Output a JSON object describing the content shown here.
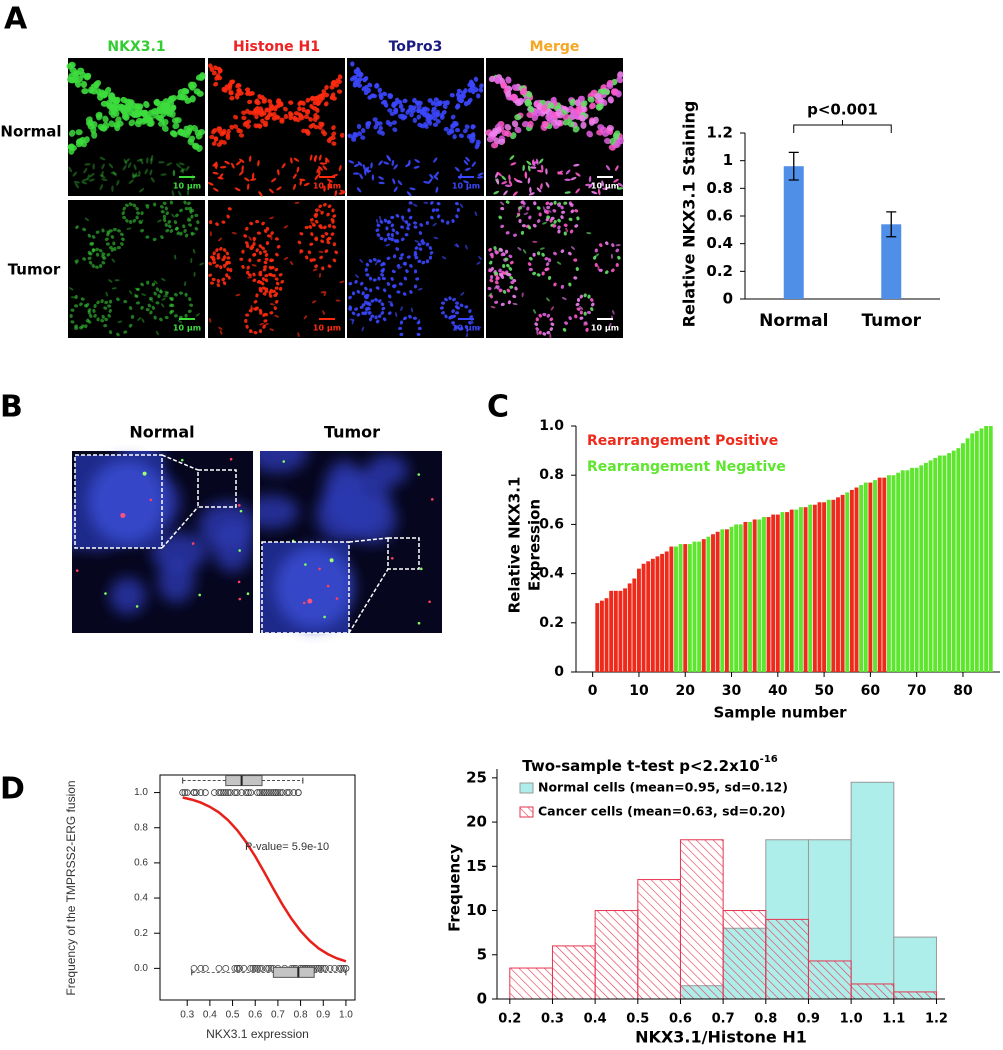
{
  "panel_labels": [
    "A",
    "B",
    "C",
    "D"
  ],
  "panel_a": {
    "columns": [
      "NKX3.1",
      "Histone H1",
      "ToPro3",
      "Merge"
    ],
    "rows": [
      "Normal",
      "Tumor"
    ],
    "scale_bar": "10 µm"
  },
  "panel_b": {
    "titles": [
      "Normal",
      "Tumor"
    ]
  },
  "chart_data": [
    {
      "type": "bar",
      "ylabel": "Relative NKX3.1 Staining",
      "categories": [
        "Normal",
        "Tumor"
      ],
      "values": [
        0.96,
        0.54
      ],
      "errors": [
        0.1,
        0.09
      ],
      "color": "#4f8fe8",
      "ylim": [
        0,
        1.2
      ],
      "yticks": [
        0,
        0.2,
        0.4,
        0.6,
        0.8,
        1,
        1.2
      ],
      "annotation": "p<0.001"
    },
    {
      "type": "bar",
      "ylabel": [
        "Relative NKX3.1",
        "Expression"
      ],
      "xlabel": "Sample number",
      "xlim": [
        -3.6,
        88
      ],
      "xticks": [
        0,
        10,
        20,
        30,
        40,
        50,
        60,
        70,
        80
      ],
      "ylim": [
        0,
        1
      ],
      "yticks": [
        0,
        0.2,
        0.4,
        0.6,
        0.8,
        {
          "value": 1,
          "label": "1.0"
        }
      ],
      "series": [
        {
          "name": "Rearrangement Positive",
          "color": "#ee2a1a",
          "x": [
            1,
            2,
            3,
            4,
            5,
            6,
            7,
            8,
            9,
            10,
            11,
            12,
            13,
            14,
            15,
            16,
            17,
            20,
            24,
            26,
            27,
            29,
            33,
            35,
            38,
            39,
            40,
            42,
            43,
            46,
            48,
            49,
            50,
            52,
            53,
            54,
            56,
            57,
            60,
            62,
            63
          ],
          "values": [
            0.28,
            0.29,
            0.3,
            0.33,
            0.33,
            0.33,
            0.34,
            0.36,
            0.38,
            0.42,
            0.44,
            0.45,
            0.46,
            0.47,
            0.48,
            0.49,
            0.51,
            0.52,
            0.54,
            0.56,
            0.57,
            0.58,
            0.61,
            0.62,
            0.63,
            0.64,
            0.64,
            0.65,
            0.66,
            0.67,
            0.68,
            0.69,
            0.69,
            0.7,
            0.71,
            0.72,
            0.74,
            0.75,
            0.77,
            0.79,
            0.79
          ]
        },
        {
          "name": "Rearrangement Negative",
          "color": "#5ee62e",
          "x": [
            18,
            19,
            21,
            22,
            23,
            25,
            28,
            30,
            31,
            32,
            34,
            36,
            37,
            41,
            44,
            45,
            47,
            51,
            55,
            58,
            59,
            61,
            64,
            65,
            66,
            67,
            68,
            69,
            70,
            71,
            72,
            73,
            74,
            75,
            76,
            77,
            78,
            79,
            80,
            81,
            82,
            83,
            84,
            85,
            86
          ],
          "values": [
            0.51,
            0.52,
            0.52,
            0.53,
            0.53,
            0.55,
            0.58,
            0.59,
            0.6,
            0.6,
            0.61,
            0.62,
            0.63,
            0.65,
            0.66,
            0.67,
            0.68,
            0.7,
            0.73,
            0.76,
            0.77,
            0.78,
            0.8,
            0.8,
            0.81,
            0.82,
            0.82,
            0.83,
            0.83,
            0.84,
            0.85,
            0.86,
            0.87,
            0.88,
            0.88,
            0.89,
            0.9,
            0.91,
            0.93,
            0.95,
            0.97,
            0.98,
            0.99,
            1.0,
            1.0
          ]
        }
      ]
    },
    {
      "type": "scatter",
      "xlabel": "NKX3.1 expression",
      "ylabel": "Frequency of the TMPRSS2-ERG fusion",
      "annotation": "P-value= 5.9e-10",
      "xlim": [
        0.18,
        1.04
      ],
      "ylim": [
        -0.18,
        1.1
      ],
      "xticks": [
        0.3,
        0.4,
        0.5,
        0.6,
        0.7,
        0.8,
        0.9,
        {
          "value": 1,
          "label": "1.0"
        }
      ],
      "yticks": [
        {
          "value": 0,
          "label": "0.0"
        },
        0.2,
        0.4,
        0.6,
        0.8,
        {
          "value": 1,
          "label": "1.0"
        }
      ],
      "series": [
        {
          "color": "#444444",
          "x": [
            0.28,
            0.29,
            0.3,
            0.33,
            0.33,
            0.33,
            0.34,
            0.36,
            0.38,
            0.42,
            0.44,
            0.45,
            0.46,
            0.47,
            0.48,
            0.49,
            0.51,
            0.52,
            0.54,
            0.56,
            0.57,
            0.58,
            0.61,
            0.62,
            0.63,
            0.64,
            0.64,
            0.65,
            0.66,
            0.67,
            0.68,
            0.69,
            0.69,
            0.7,
            0.71,
            0.72,
            0.74,
            0.75,
            0.77,
            0.79,
            0.79
          ],
          "values": [
            1,
            1,
            1,
            1,
            1,
            1,
            1,
            1,
            1,
            1,
            1,
            1,
            1,
            1,
            1,
            1,
            1,
            1,
            1,
            1,
            1,
            1,
            1,
            1,
            1,
            1,
            1,
            1,
            1,
            1,
            1,
            1,
            1,
            1,
            1,
            1,
            1,
            1,
            1,
            1,
            1
          ]
        },
        {
          "color": "#444444",
          "x": [
            0.33,
            0.36,
            0.38,
            0.44,
            0.47,
            0.51,
            0.52,
            0.52,
            0.53,
            0.53,
            0.55,
            0.58,
            0.59,
            0.6,
            0.6,
            0.61,
            0.62,
            0.63,
            0.65,
            0.66,
            0.67,
            0.68,
            0.7,
            0.73,
            0.76,
            0.77,
            0.78,
            0.8,
            0.8,
            0.81,
            0.82,
            0.82,
            0.83,
            0.83,
            0.84,
            0.85,
            0.86,
            0.87,
            0.88,
            0.88,
            0.89,
            0.9,
            0.91,
            0.93,
            0.95,
            0.97,
            0.98,
            0.99,
            1.0,
            1.0
          ],
          "values": [
            0,
            0,
            0,
            0,
            0,
            0,
            0,
            0,
            0,
            0,
            0,
            0,
            0,
            0,
            0,
            0,
            0,
            0,
            0,
            0,
            0,
            0,
            0,
            0,
            0,
            0,
            0,
            0,
            0,
            0,
            0,
            0,
            0,
            0,
            0,
            0,
            0,
            0,
            0,
            0,
            0,
            0,
            0,
            0,
            0,
            0,
            0,
            0,
            0,
            0
          ]
        }
      ],
      "boxes": [
        {
          "min": 0.28,
          "q1": 0.47,
          "median": 0.54,
          "q3": 0.63,
          "max": 0.81
        },
        {
          "min": 0.32,
          "q1": 0.68,
          "median": 0.79,
          "q3": 0.86,
          "max": 1.0
        }
      ],
      "curve": {
        "color": "#e8201a",
        "x": [
          0.28,
          0.32,
          0.36,
          0.4,
          0.44,
          0.48,
          0.52,
          0.56,
          0.6,
          0.64,
          0.68,
          0.72,
          0.76,
          0.8,
          0.84,
          0.88,
          0.92,
          0.96,
          1.0
        ],
        "values": [
          0.972,
          0.96,
          0.943,
          0.919,
          0.887,
          0.843,
          0.787,
          0.718,
          0.637,
          0.547,
          0.453,
          0.363,
          0.282,
          0.213,
          0.157,
          0.113,
          0.081,
          0.057,
          0.04
        ]
      }
    },
    {
      "type": "histogram",
      "title": "Two-sample t-test p<2.2x10",
      "title_exponent": "-16",
      "xlabel": "NKX3.1/Histone H1",
      "ylabel": "Frequency",
      "bins": [
        0.2,
        0.3,
        0.4,
        0.5,
        0.6,
        0.7,
        0.8,
        0.9,
        1.0,
        1.1,
        1.2
      ],
      "xlim": [
        0.17,
        1.22
      ],
      "ylim": [
        0,
        26
      ],
      "xticks": [
        0.2,
        0.3,
        0.4,
        0.5,
        0.6,
        0.7,
        0.8,
        0.9,
        {
          "value": 1,
          "label": "1.0"
        },
        1.1,
        1.2
      ],
      "yticks": [
        0,
        5,
        10,
        15,
        20,
        25
      ],
      "series": [
        {
          "name": "Normal cells (mean=0.95, sd=0.12)",
          "color": "#aeeeea",
          "values": [
            0,
            0,
            0,
            0,
            1.5,
            8,
            18,
            18,
            24.5,
            7
          ]
        },
        {
          "name": "Cancer cells (mean=0.63, sd=0.20)",
          "color": "#e8334f",
          "hatch": true,
          "values": [
            3.5,
            6,
            10,
            13.5,
            18,
            10,
            9,
            4.3,
            1.7,
            0.8
          ]
        }
      ]
    }
  ]
}
